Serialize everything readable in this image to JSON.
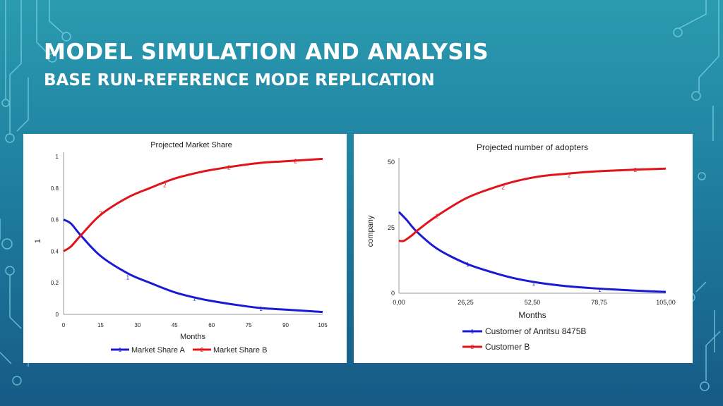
{
  "slide": {
    "title": "MODEL SIMULATION AND ANALYSIS",
    "subtitle": "BASE RUN-REFERENCE MODE REPLICATION"
  },
  "colors": {
    "series_a": "#1a1ad4",
    "series_b": "#e0141a",
    "title_text": "#ffffff"
  },
  "chart_data": [
    {
      "type": "line",
      "title": "Projected Market Share",
      "xlabel": "Months",
      "ylabel": "1",
      "xlim": [
        0,
        105
      ],
      "ylim": [
        0,
        1
      ],
      "x_ticks": [
        "0",
        "15",
        "30",
        "45",
        "60",
        "75",
        "90",
        "105"
      ],
      "y_ticks": [
        "0",
        "0.2",
        "0.4",
        "0.6",
        "0.8",
        "1"
      ],
      "grid": false,
      "legend_position": "bottom",
      "series": [
        {
          "name": "Market Share A",
          "marker": "1",
          "x": [
            0,
            3,
            7,
            15,
            26,
            35,
            45,
            55,
            60,
            70,
            80,
            90,
            105
          ],
          "y": [
            0.6,
            0.575,
            0.5,
            0.37,
            0.26,
            0.2,
            0.14,
            0.1,
            0.085,
            0.06,
            0.04,
            0.03,
            0.015
          ]
        },
        {
          "name": "Market Share B",
          "marker": "2",
          "x": [
            0,
            3,
            7,
            15,
            26,
            35,
            45,
            55,
            60,
            70,
            80,
            90,
            105
          ],
          "y": [
            0.4,
            0.43,
            0.5,
            0.63,
            0.74,
            0.8,
            0.86,
            0.9,
            0.915,
            0.94,
            0.96,
            0.97,
            0.985
          ]
        }
      ],
      "marker_labels": [
        {
          "series": 0,
          "label": "1",
          "x": 26,
          "y": 0.235
        },
        {
          "series": 0,
          "label": "1",
          "x": 53,
          "y": 0.1
        },
        {
          "series": 0,
          "label": "1",
          "x": 80,
          "y": 0.035
        },
        {
          "series": 1,
          "label": "2",
          "x": 15,
          "y": 0.64
        },
        {
          "series": 1,
          "label": "2",
          "x": 41,
          "y": 0.82
        },
        {
          "series": 1,
          "label": "2",
          "x": 67,
          "y": 0.93
        },
        {
          "series": 1,
          "label": "2",
          "x": 94,
          "y": 0.97
        }
      ]
    },
    {
      "type": "line",
      "title": "Projected number of adopters",
      "xlabel": "Months",
      "ylabel": "company",
      "xlim": [
        0,
        105
      ],
      "ylim": [
        0,
        50
      ],
      "x_ticks": [
        "0,00",
        "26,25",
        "52,50",
        "78,75",
        "105,00"
      ],
      "y_ticks": [
        "0",
        "25",
        "50"
      ],
      "grid": false,
      "legend_position": "bottom-right",
      "series": [
        {
          "name": "Customer of Anritsu 8475B",
          "marker": "1",
          "x": [
            0,
            3,
            7,
            15,
            26,
            35,
            45,
            55,
            65,
            75,
            85,
            95,
            105
          ],
          "y": [
            31,
            28,
            23.5,
            17,
            11.5,
            8.5,
            5.8,
            4,
            2.8,
            2,
            1.4,
            0.9,
            0.5
          ]
        },
        {
          "name": "Customer B",
          "marker": "2",
          "x": [
            0,
            2,
            5,
            8,
            15,
            26,
            35,
            45,
            55,
            65,
            75,
            85,
            95,
            105
          ],
          "y": [
            20,
            20,
            22,
            24.5,
            29.5,
            36,
            39.5,
            42.5,
            44.5,
            45.5,
            46.3,
            46.8,
            47.2,
            47.5
          ]
        }
      ],
      "marker_labels": [
        {
          "series": 0,
          "label": "1",
          "x": 27,
          "y": 11
        },
        {
          "series": 0,
          "label": "1",
          "x": 53,
          "y": 3.8
        },
        {
          "series": 0,
          "label": "1",
          "x": 79,
          "y": 1.4
        },
        {
          "series": 1,
          "label": "2",
          "x": 15,
          "y": 29.5
        },
        {
          "series": 1,
          "label": "2",
          "x": 41,
          "y": 40.5
        },
        {
          "series": 1,
          "label": "2",
          "x": 67,
          "y": 45
        },
        {
          "series": 1,
          "label": "2",
          "x": 93,
          "y": 47
        }
      ]
    }
  ]
}
